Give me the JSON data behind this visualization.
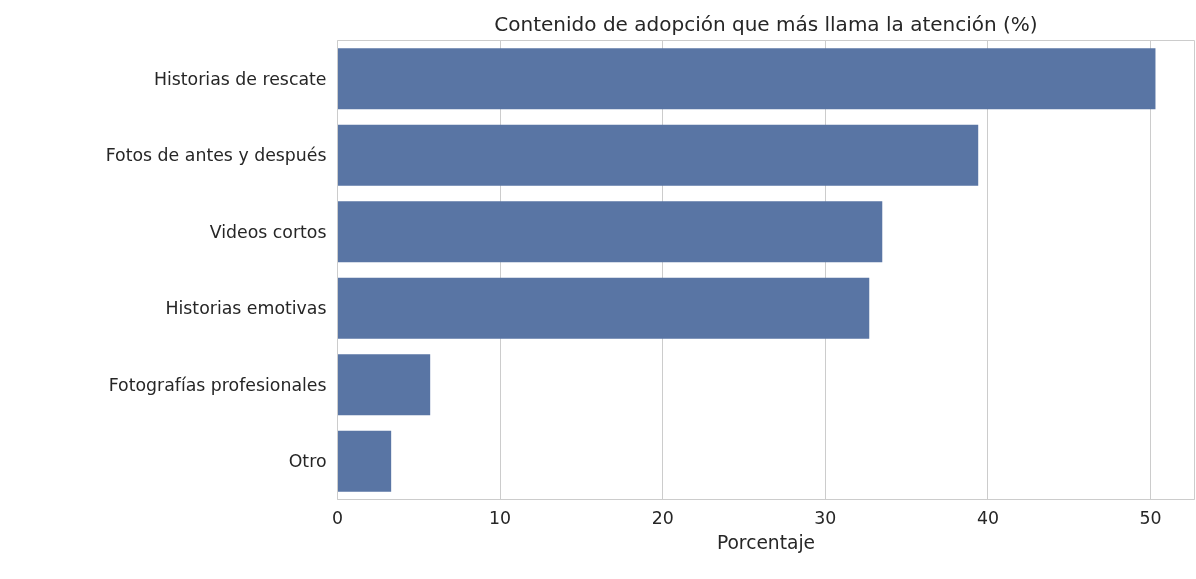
{
  "chart_data": {
    "type": "bar",
    "orientation": "horizontal",
    "title": "Contenido de adopción que más llama la atención (%)",
    "xlabel": "Porcentaje",
    "categories": [
      "Historias de rescate",
      "Fotos de antes y después",
      "Videos cortos",
      "Historias emotivas",
      "Fotografías profesionales",
      "Otro"
    ],
    "values": [
      50.3,
      39.4,
      33.5,
      32.7,
      5.7,
      3.3
    ],
    "color": "#5975a4",
    "xlim": [
      0,
      52.7
    ],
    "xticks": [
      0,
      10,
      20,
      30,
      40,
      50
    ],
    "grid": "x"
  }
}
